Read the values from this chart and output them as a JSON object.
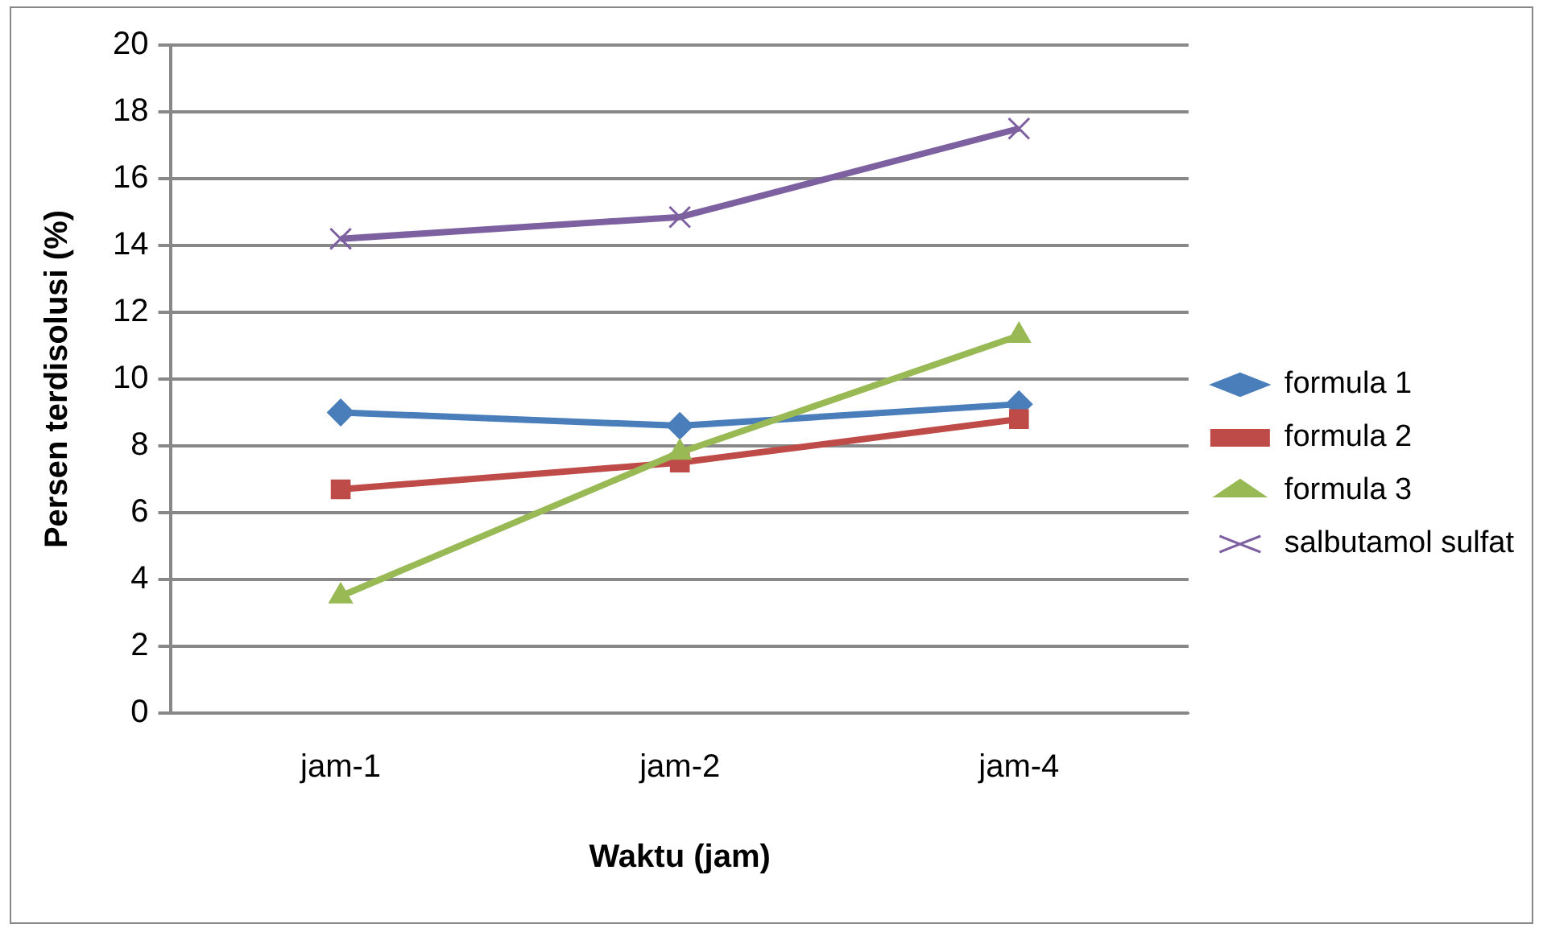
{
  "chart_data": {
    "type": "line",
    "xlabel": "Waktu (jam)",
    "ylabel": "Persen terdisolusi (%)",
    "categories": [
      "jam-1",
      "jam-2",
      "jam-4"
    ],
    "series": [
      {
        "name": "formula 1",
        "color": "#4a7ebb",
        "marker": "diamond",
        "values": [
          9.0,
          8.6,
          9.25
        ]
      },
      {
        "name": "formula 2",
        "color": "#be4b48",
        "marker": "square",
        "values": [
          6.7,
          7.5,
          8.8
        ]
      },
      {
        "name": "formula 3",
        "color": "#98b954",
        "marker": "triangle",
        "values": [
          3.5,
          7.8,
          11.3
        ]
      },
      {
        "name": "salbutamol sulfat",
        "color": "#7d60a0",
        "marker": "cross",
        "values": [
          14.2,
          14.85,
          17.5
        ]
      }
    ],
    "ylim": [
      0,
      20
    ],
    "yticks": [
      0,
      2,
      4,
      6,
      8,
      10,
      12,
      14,
      16,
      18,
      20
    ],
    "grid": "y",
    "legend": "right",
    "line_style": "solid"
  }
}
